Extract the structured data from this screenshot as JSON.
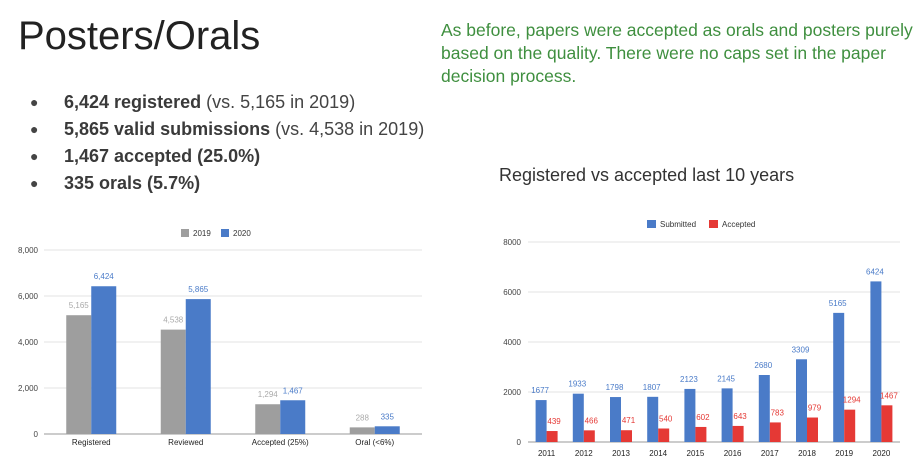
{
  "slide": {
    "title": "Posters/Orals",
    "note": "As before, papers were accepted as orals and posters purely based on the quality. There were no caps set in the paper decision process.",
    "bullets": [
      {
        "bold": "6,424 registered",
        "rest": " (vs. 5,165 in 2019)"
      },
      {
        "bold": "5,865 valid submissions",
        "rest": " (vs. 4,538 in 2019)"
      },
      {
        "bold": "1,467 accepted (25.0%)",
        "rest": ""
      },
      {
        "bold": "335 orals (5.7%)",
        "rest": ""
      }
    ]
  },
  "chart_data": [
    {
      "type": "bar",
      "title": "",
      "categories": [
        "Registered",
        "Reviewed",
        "Accepted (25%)",
        "Oral (<6%)"
      ],
      "series": [
        {
          "name": "2019",
          "color": "#9e9e9e",
          "values": [
            5165,
            4538,
            1294,
            288
          ],
          "labels": [
            "5,165",
            "4,538",
            "1,294",
            "288"
          ]
        },
        {
          "name": "2020",
          "color": "#4a7bc8",
          "values": [
            6424,
            5865,
            1467,
            335
          ],
          "labels": [
            "6,424",
            "5,865",
            "1,467",
            "335"
          ]
        }
      ],
      "ylim": [
        0,
        8000
      ],
      "yticks": [
        0,
        2000,
        4000,
        6000,
        8000
      ],
      "ytick_labels": [
        "0",
        "2,000",
        "4,000",
        "6,000",
        "8,000"
      ],
      "grid": true,
      "legend": "top-center"
    },
    {
      "type": "bar",
      "title": "Registered vs accepted last 10 years",
      "categories": [
        "2011",
        "2012",
        "2013",
        "2014",
        "2015",
        "2016",
        "2017",
        "2018",
        "2019",
        "2020"
      ],
      "series": [
        {
          "name": "Submitted",
          "color": "#4a7bc8",
          "values": [
            1677,
            1933,
            1798,
            1807,
            2123,
            2145,
            2680,
            3309,
            5165,
            6424
          ]
        },
        {
          "name": "Accepted",
          "color": "#e53935",
          "values": [
            439,
            466,
            471,
            540,
            602,
            643,
            783,
            979,
            1294,
            1467
          ]
        }
      ],
      "ylim": [
        0,
        8000
      ],
      "yticks": [
        0,
        2000,
        4000,
        6000,
        8000
      ],
      "grid": true,
      "legend": "top-center"
    }
  ]
}
